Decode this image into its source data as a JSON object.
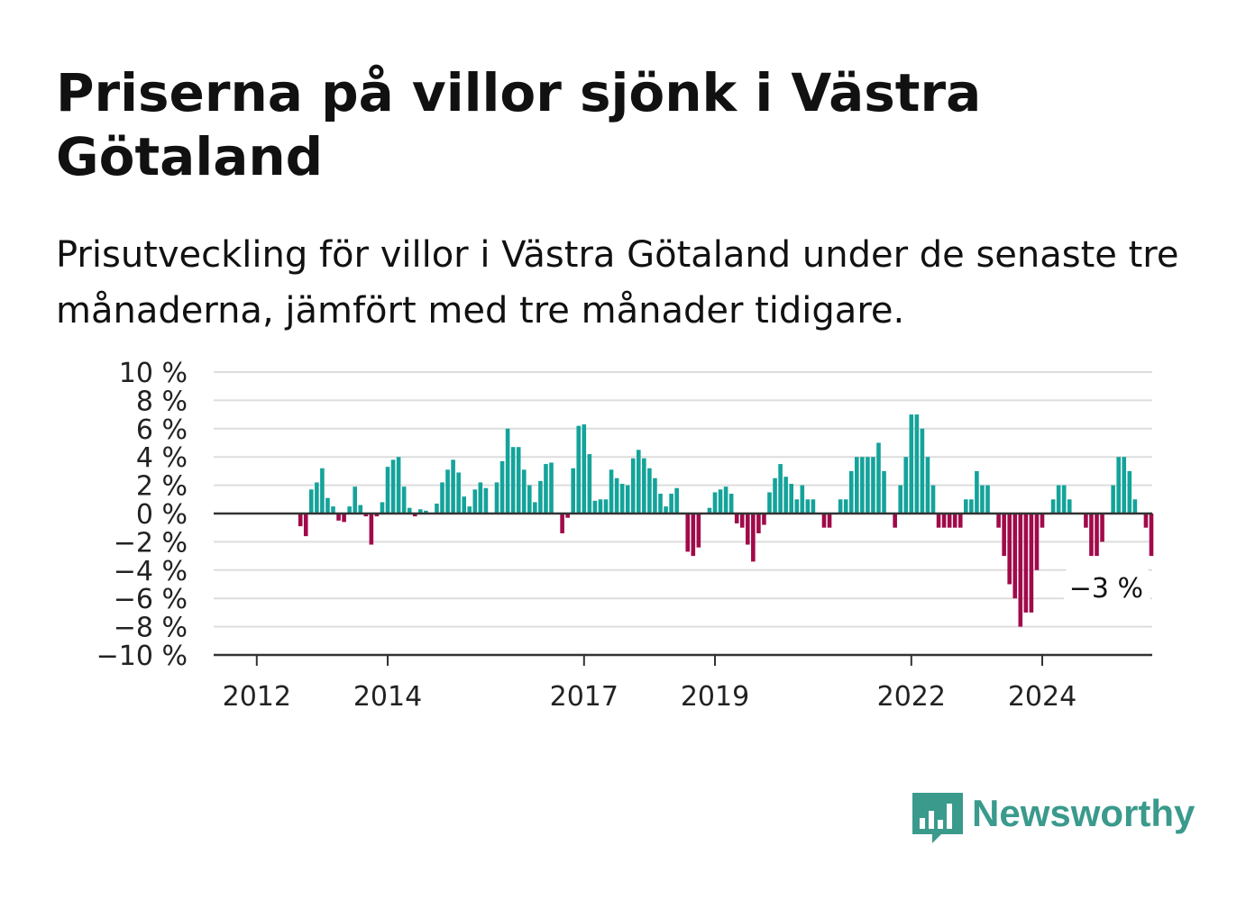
{
  "title": "Priserna på villor sjönk i Västra Götaland",
  "subtitle": "Prisutveckling för villor i Västra Götaland under de senaste tre månaderna, jämfört med tre månader tidigare.",
  "brand": {
    "name": "Newsworthy",
    "icon": "bar-chart-speech-bubble-icon",
    "color": "#3a9a8c"
  },
  "chart_data": {
    "type": "bar",
    "ylim": [
      -10,
      10
    ],
    "y_ticks": [
      "10 %",
      "8 %",
      "6 %",
      "4 %",
      "2 %",
      "0 %",
      "−2 %",
      "−4 %",
      "−6 %",
      "−8 %",
      "−10 %"
    ],
    "y_tick_values": [
      10,
      8,
      6,
      4,
      2,
      0,
      -2,
      -4,
      -6,
      -8,
      -10
    ],
    "x_ticks": [
      "2012",
      "2014",
      "2017",
      "2019",
      "2022",
      "2024"
    ],
    "grid": true,
    "colors": {
      "positive": "#14a39a",
      "negative": "#a10a4a"
    },
    "annotation": "−3 %",
    "start": "2011-11",
    "frequency": "monthly",
    "values": [
      0,
      0,
      0,
      0,
      0,
      0,
      0,
      0,
      0,
      0,
      -0.9,
      -1.6,
      1.7,
      2.2,
      3.2,
      1.1,
      0.5,
      -0.5,
      -0.6,
      0.5,
      1.9,
      0.6,
      -0.2,
      -2.2,
      -0.2,
      0.8,
      3.3,
      3.8,
      4.0,
      1.9,
      0.4,
      -0.2,
      0.3,
      0.2,
      0.0,
      0.7,
      2.2,
      3.1,
      3.8,
      2.9,
      1.2,
      0.5,
      1.7,
      2.2,
      1.8,
      0.0,
      2.2,
      3.7,
      6.0,
      4.7,
      4.7,
      3.1,
      2.0,
      0.8,
      2.3,
      3.5,
      3.6,
      0.0,
      -1.4,
      -0.3,
      3.2,
      6.2,
      6.3,
      4.2,
      0.9,
      1.0,
      1.0,
      3.1,
      2.5,
      2.1,
      2.0,
      3.9,
      4.5,
      3.9,
      3.2,
      2.5,
      1.4,
      0.5,
      1.4,
      1.8,
      0,
      -2.7,
      -3.0,
      -2.4,
      0.0,
      0.4,
      1.5,
      1.7,
      1.9,
      1.4,
      -0.7,
      -1.0,
      -2.2,
      -3.4,
      -1.4,
      -0.8,
      1.5,
      2.5,
      3.5,
      2.6,
      2.1,
      1.0,
      2.0,
      1.0,
      1.0,
      0,
      -1.0,
      -1.0,
      0,
      1.0,
      1.0,
      3.0,
      4.0,
      4.0,
      4.0,
      4.0,
      5.0,
      3.0,
      0,
      -1.0,
      2.0,
      4.0,
      7.0,
      7.0,
      6.0,
      4.0,
      2.0,
      -1.0,
      -1.0,
      -1.0,
      -1.0,
      -1.0,
      1.0,
      1.0,
      3.0,
      2.0,
      2.0,
      0,
      -1.0,
      -3.0,
      -5.0,
      -6.0,
      -8.0,
      -7.0,
      -7.0,
      -4.0,
      -1.0,
      0,
      1.0,
      2.0,
      2.0,
      1.0,
      0,
      0,
      -1.0,
      -3.0,
      -3.0,
      -2.0,
      0,
      2.0,
      4.0,
      4.0,
      3.0,
      1.0,
      0,
      -1.0,
      -3.0
    ]
  }
}
